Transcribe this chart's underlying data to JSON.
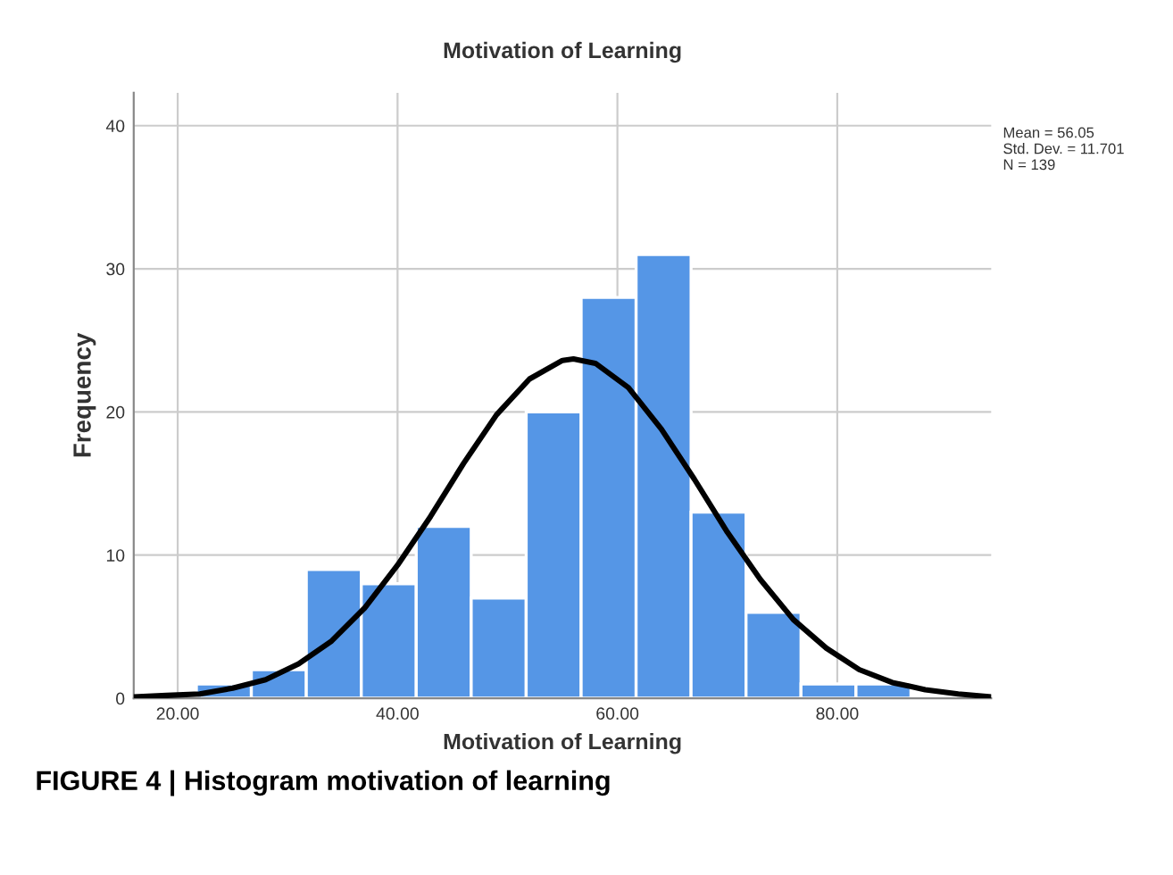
{
  "chart_data": {
    "type": "histogram",
    "title": "Motivation of Learning",
    "xlabel": "Motivation of Learning",
    "ylabel": "Frequency",
    "series": [
      {
        "color": "#5596e6",
        "bins": [
          21.7,
          26.7,
          31.7,
          36.7,
          41.7,
          46.7,
          51.7,
          56.7,
          61.7,
          66.7,
          71.7,
          76.7,
          81.7,
          86.7
        ],
        "values": [
          1,
          2,
          9,
          8,
          12,
          7,
          20,
          28,
          31,
          13,
          6,
          1,
          1
        ]
      },
      {
        "type": "line",
        "color": "#000000",
        "x": [
          16,
          19,
          22,
          25,
          28,
          31,
          34,
          37,
          40,
          43,
          46,
          49,
          52,
          55,
          56,
          58,
          61,
          64,
          67,
          70,
          73,
          76,
          79,
          82,
          85,
          88,
          91,
          94
        ],
        "values": [
          0.1,
          0.2,
          0.3,
          0.7,
          1.3,
          2.4,
          4.0,
          6.3,
          9.3,
          12.7,
          16.4,
          19.8,
          22.3,
          23.6,
          23.7,
          23.4,
          21.7,
          18.8,
          15.3,
          11.6,
          8.3,
          5.5,
          3.5,
          2.0,
          1.1,
          0.6,
          0.3,
          0.1
        ]
      }
    ],
    "xlim": [
      16,
      94
    ],
    "ylim": [
      0,
      42.3
    ],
    "xticks": [
      {
        "value": 20,
        "label": "20.00"
      },
      {
        "value": 40,
        "label": "40.00"
      },
      {
        "value": 60,
        "label": "60.00"
      },
      {
        "value": 80,
        "label": "80.00"
      }
    ],
    "yticks": [
      0,
      10,
      20,
      30,
      40
    ],
    "grid": true,
    "line_style": "solid",
    "marker": "none",
    "annotations": [
      "Mean = 56.05\nStd. Dev. = 11.701\nN = 139",
      "FIGURE 4 | Histogram motivation of learning"
    ]
  }
}
